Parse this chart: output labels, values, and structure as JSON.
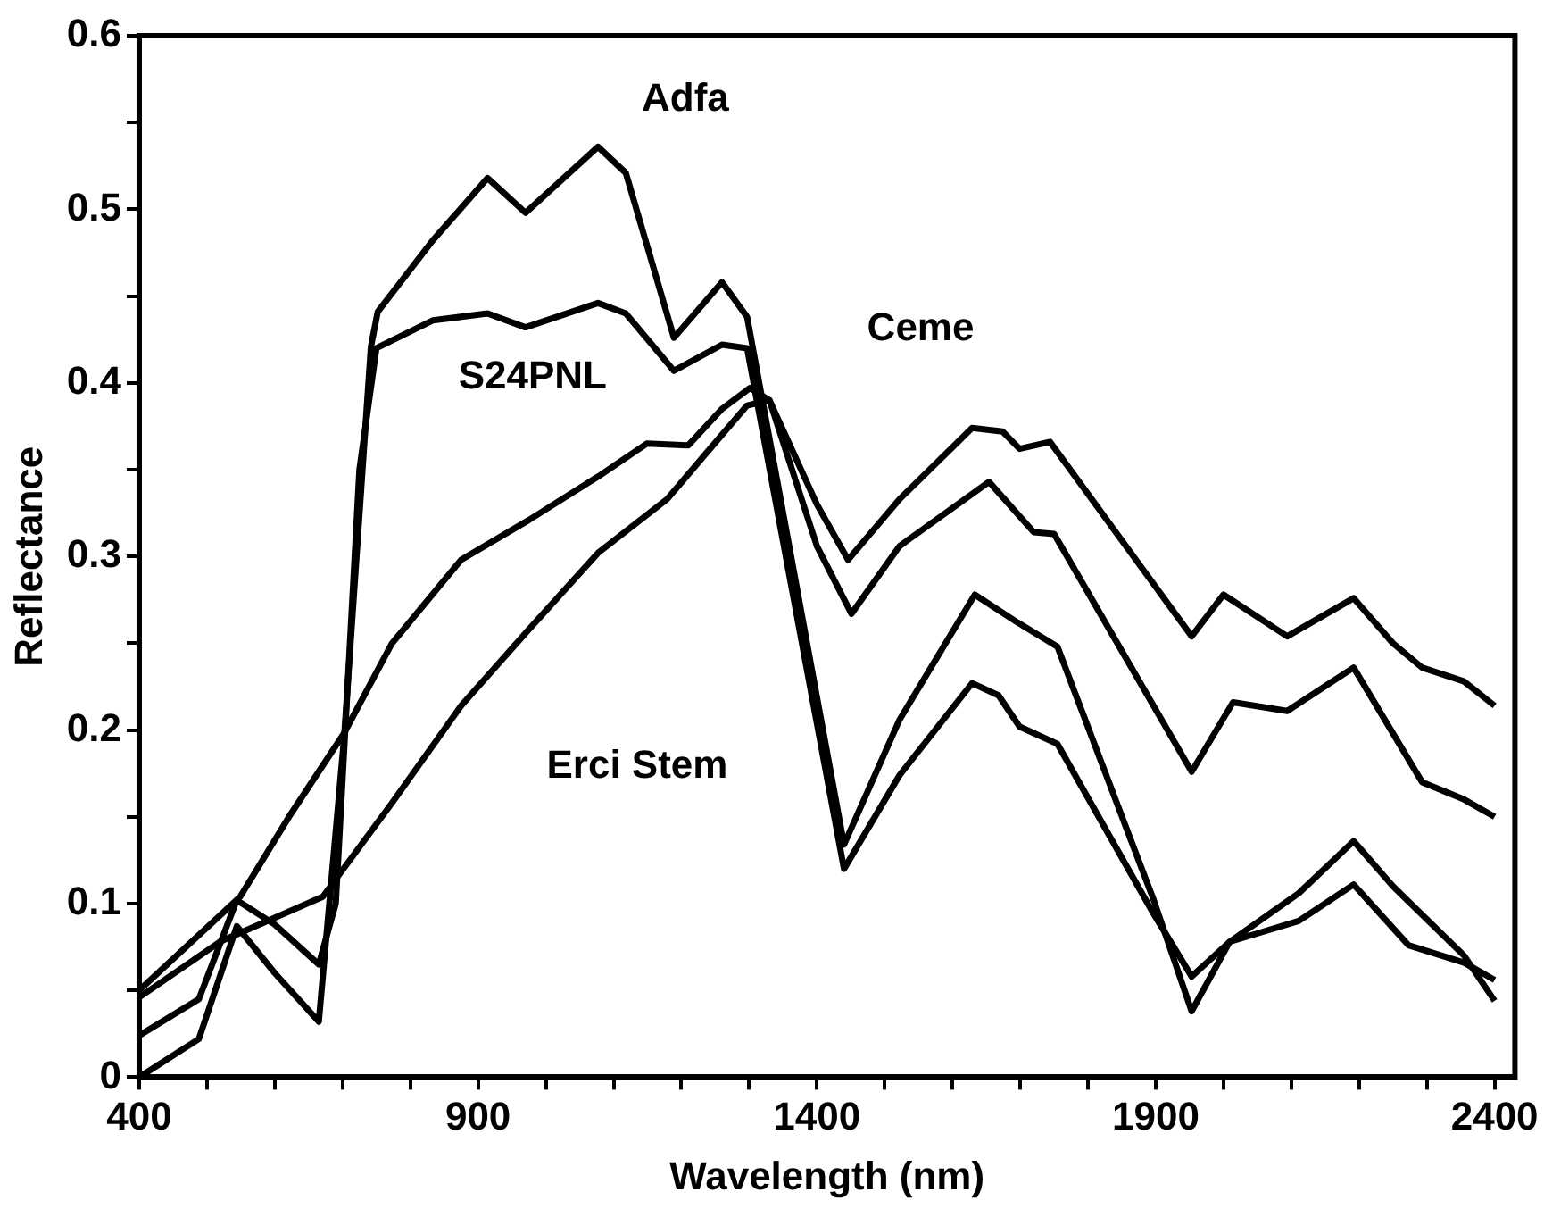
{
  "chart_data": {
    "type": "line",
    "xlabel": "Wavelength (nm)",
    "ylabel": "Reflectance",
    "xlim": [
      400,
      2430
    ],
    "ylim": [
      0,
      0.6
    ],
    "xticks": [
      400,
      {
        "value": 500,
        "label": null
      },
      {
        "value": 600,
        "label": null
      },
      {
        "value": 700,
        "label": null
      },
      {
        "value": 800,
        "label": null
      },
      900,
      {
        "value": 1000,
        "label": null
      },
      {
        "value": 1100,
        "label": null
      },
      {
        "value": 1200,
        "label": null
      },
      {
        "value": 1300,
        "label": null
      },
      1400,
      {
        "value": 1500,
        "label": null
      },
      {
        "value": 1600,
        "label": null
      },
      {
        "value": 1700,
        "label": null
      },
      {
        "value": 1800,
        "label": null
      },
      1900,
      {
        "value": 2000,
        "label": null
      },
      {
        "value": 2100,
        "label": null
      },
      {
        "value": 2200,
        "label": null
      },
      {
        "value": 2300,
        "label": null
      },
      2400
    ],
    "yticks": [
      0,
      {
        "value": 0.05,
        "label": null
      },
      0.1,
      {
        "value": 0.15,
        "label": null
      },
      0.2,
      {
        "value": 0.25,
        "label": null
      },
      0.3,
      {
        "value": 0.35,
        "label": null
      },
      0.4,
      {
        "value": 0.45,
        "label": null
      },
      0.5,
      {
        "value": 0.55,
        "label": null
      },
      0.6
    ],
    "grid": false,
    "legend": false,
    "marker": "none",
    "line_style": "solid",
    "series": [
      {
        "color": "#000000",
        "x": [
          400,
          488,
          544,
          600,
          665,
          702,
          742,
          752,
          833,
          914,
          970,
          1077,
          1118,
          1189,
          1260,
          1297,
          1440,
          1522,
          1633,
          1696,
          1755,
          1897,
          1953,
          2009,
          2111,
          2192,
          2250,
          2355,
          2400
        ],
        "values": [
          0.0,
          0.022,
          0.087,
          0.06,
          0.032,
          0.194,
          0.421,
          0.441,
          0.482,
          0.518,
          0.498,
          0.536,
          0.521,
          0.426,
          0.458,
          0.438,
          0.134,
          0.206,
          0.278,
          0.262,
          0.248,
          0.102,
          0.038,
          0.078,
          0.106,
          0.136,
          0.11,
          0.07,
          0.044
        ]
      },
      {
        "color": "#000000",
        "x": [
          400,
          488,
          544,
          600,
          665,
          690,
          725,
          750,
          833,
          914,
          970,
          1077,
          1118,
          1189,
          1260,
          1297,
          1440,
          1522,
          1629,
          1668,
          1699,
          1755,
          1897,
          1953,
          2009,
          2111,
          2192,
          2273,
          2355,
          2400
        ],
        "values": [
          0.024,
          0.045,
          0.102,
          0.088,
          0.065,
          0.1,
          0.35,
          0.42,
          0.436,
          0.44,
          0.432,
          0.446,
          0.44,
          0.407,
          0.422,
          0.42,
          0.12,
          0.174,
          0.227,
          0.22,
          0.202,
          0.192,
          0.094,
          0.058,
          0.078,
          0.09,
          0.111,
          0.076,
          0.066,
          0.056
        ]
      },
      {
        "color": "#000000",
        "x": [
          400,
          549,
          621,
          702,
          773,
          875,
          975,
          1077,
          1149,
          1210,
          1260,
          1301,
          1330,
          1400,
          1446,
          1522,
          1629,
          1674,
          1699,
          1744,
          1953,
          2000,
          2094,
          2192,
          2250,
          2293,
          2355,
          2400
        ],
        "values": [
          0.05,
          0.104,
          0.15,
          0.198,
          0.25,
          0.298,
          0.321,
          0.346,
          0.365,
          0.364,
          0.385,
          0.397,
          0.39,
          0.33,
          0.298,
          0.333,
          0.374,
          0.372,
          0.362,
          0.366,
          0.254,
          0.278,
          0.254,
          0.276,
          0.25,
          0.236,
          0.228,
          0.214
        ]
      },
      {
        "color": "#000000",
        "x": [
          400,
          519,
          671,
          773,
          875,
          975,
          1077,
          1179,
          1240,
          1297,
          1330,
          1400,
          1451,
          1522,
          1654,
          1720,
          1750,
          1953,
          2014,
          2094,
          2192,
          2293,
          2355,
          2400
        ],
        "values": [
          0.046,
          0.078,
          0.104,
          0.158,
          0.214,
          0.258,
          0.302,
          0.333,
          0.361,
          0.387,
          0.39,
          0.306,
          0.267,
          0.306,
          0.343,
          0.314,
          0.313,
          0.176,
          0.216,
          0.211,
          0.236,
          0.17,
          0.16,
          0.15
        ]
      }
    ],
    "annotations": [
      "Adfa",
      "S24PNL",
      "Ceme",
      "Erci Stem"
    ]
  }
}
